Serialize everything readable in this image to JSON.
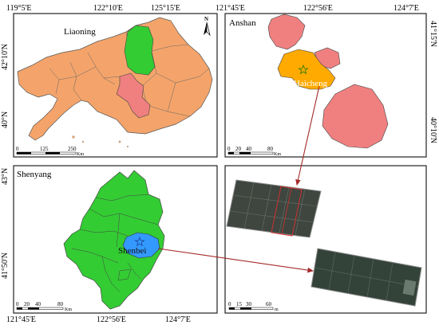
{
  "colors": {
    "liaoning_fill": "#F4A46A",
    "highlight_green": "#33CC33",
    "anshan_pink": "#F08080",
    "haicheng_orange": "#FFAA00",
    "shenbei_blue": "#3399FF",
    "arrow": "#A52A2A",
    "border": "#444444"
  },
  "top_coords": [
    "119°5'E",
    "122°10'E",
    "125°15'E",
    "121°45'E",
    "122°56'E",
    "124°7'E"
  ],
  "bottom_coords": [
    "121°45'E",
    "122°56'E",
    "124°7'E"
  ],
  "left_coords": [
    "42°10'N",
    "40°N",
    "43°N",
    "41°50'N"
  ],
  "right_coords": [
    "41°15'N",
    "40°10'N"
  ],
  "panels": {
    "liaoning": {
      "title": "Liaoning",
      "scale_ticks": [
        "0",
        "125",
        "250"
      ],
      "scale_unit": "Km",
      "north_label": "N"
    },
    "anshan": {
      "title": "Anshan",
      "city_label": "Haicheng",
      "scale_ticks": [
        "0",
        "20",
        "40",
        "80"
      ],
      "scale_unit": "Km"
    },
    "shenyang": {
      "title": "Shenyang",
      "city_label": "Shenbei",
      "scale_ticks": [
        "0",
        "20",
        "40",
        "80"
      ],
      "scale_unit": "Km"
    },
    "field": {
      "scale_ticks": [
        "0",
        "15",
        "30",
        "60"
      ],
      "scale_unit": "m"
    }
  },
  "icons": {
    "north_arrow": "north-arrow-icon",
    "study_site": "star-icon"
  }
}
